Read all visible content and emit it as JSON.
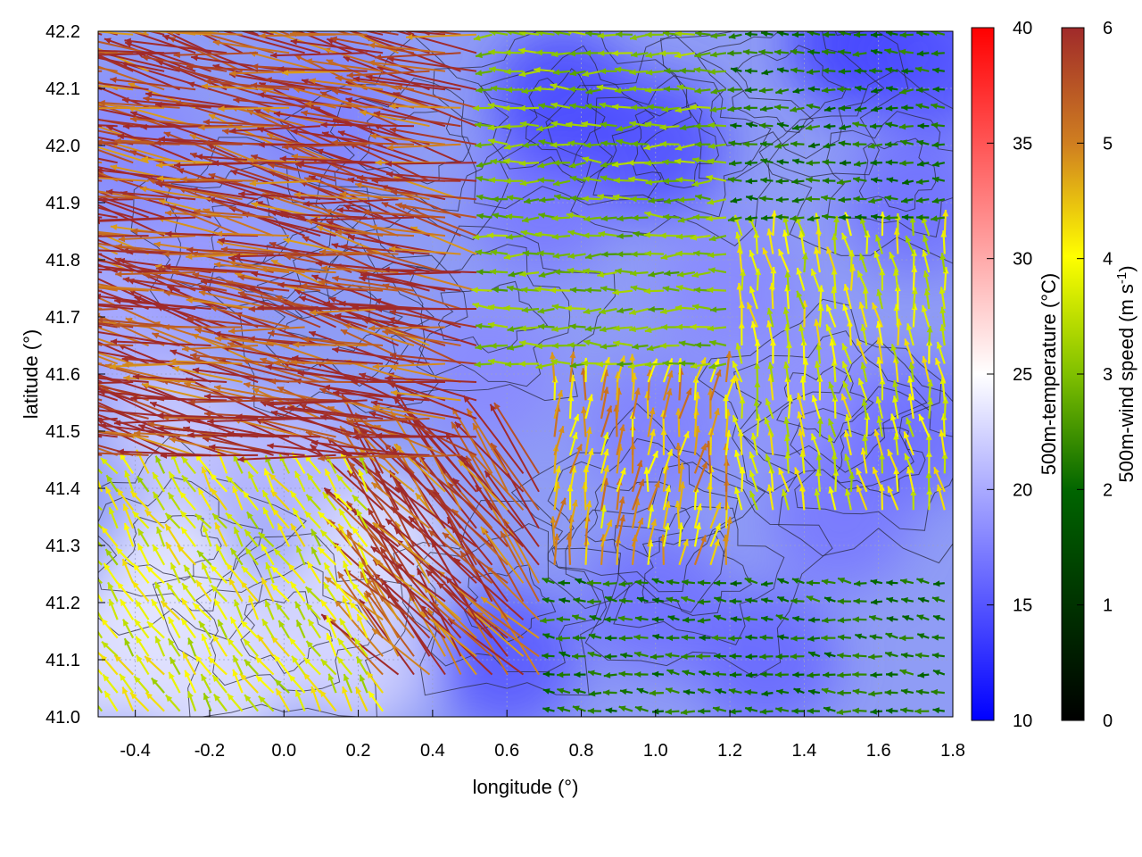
{
  "chart_data": {
    "type": "heatmap",
    "description_kind": "map of 500 m temperature (colour field) with wind-vector arrows coloured by speed and black terrain contours",
    "xlabel": "longitude (°)",
    "ylabel": "latitude (°)",
    "xlim": [
      -0.5,
      1.8
    ],
    "ylim": [
      41.0,
      42.2
    ],
    "x_ticks": [
      {
        "value": -0.4,
        "label": "-0.4"
      },
      {
        "value": -0.2,
        "label": "-0.2"
      },
      {
        "value": 0.0,
        "label": "0.0"
      },
      {
        "value": 0.2,
        "label": "0.2"
      },
      {
        "value": 0.4,
        "label": "0.4"
      },
      {
        "value": 0.6,
        "label": "0.6"
      },
      {
        "value": 0.8,
        "label": "0.8"
      },
      {
        "value": 1.0,
        "label": "1.0"
      },
      {
        "value": 1.2,
        "label": "1.2"
      },
      {
        "value": 1.4,
        "label": "1.4"
      },
      {
        "value": 1.6,
        "label": "1.6"
      },
      {
        "value": 1.8,
        "label": "1.8"
      }
    ],
    "y_ticks": [
      {
        "value": 41.0,
        "label": "41.0"
      },
      {
        "value": 41.1,
        "label": "41.1"
      },
      {
        "value": 41.2,
        "label": "41.2"
      },
      {
        "value": 41.3,
        "label": "41.3"
      },
      {
        "value": 41.4,
        "label": "41.4"
      },
      {
        "value": 41.5,
        "label": "41.5"
      },
      {
        "value": 41.6,
        "label": "41.6"
      },
      {
        "value": 41.7,
        "label": "41.7"
      },
      {
        "value": 41.8,
        "label": "41.8"
      },
      {
        "value": 41.9,
        "label": "41.9"
      },
      {
        "value": 42.0,
        "label": "42.0"
      },
      {
        "value": 42.1,
        "label": "42.1"
      },
      {
        "value": 42.2,
        "label": "42.2"
      }
    ],
    "grid": true,
    "temperature_colorbar": {
      "label": "500m-temperature (°C)",
      "range": [
        10,
        40
      ],
      "ticks": [
        {
          "value": 10,
          "label": "10"
        },
        {
          "value": 15,
          "label": "15"
        },
        {
          "value": 20,
          "label": "20"
        },
        {
          "value": 25,
          "label": "25"
        },
        {
          "value": 30,
          "label": "30"
        },
        {
          "value": 35,
          "label": "35"
        },
        {
          "value": 40,
          "label": "40"
        }
      ],
      "colors": [
        "#0000ff",
        "#ffffff",
        "#ff0000"
      ]
    },
    "wind_colorbar": {
      "label_prefix": "500m-wind speed (m s",
      "label_superscript": "-1",
      "label_suffix": ")",
      "range": [
        0,
        6
      ],
      "ticks": [
        {
          "value": 0,
          "label": "0"
        },
        {
          "value": 1,
          "label": "1"
        },
        {
          "value": 2,
          "label": "2"
        },
        {
          "value": 3,
          "label": "3"
        },
        {
          "value": 4,
          "label": "4"
        },
        {
          "value": 5,
          "label": "5"
        },
        {
          "value": 6,
          "label": "6"
        }
      ],
      "colors": [
        "#000000",
        "#006400",
        "#80c000",
        "#ffff00",
        "#d08020",
        "#a02a2a"
      ]
    },
    "temperature_field": [
      {
        "lon": -0.5,
        "lat": 41.1,
        "temp": 23.5
      },
      {
        "lon": -0.3,
        "lat": 41.25,
        "temp": 24.0
      },
      {
        "lon": -0.2,
        "lat": 41.05,
        "temp": 23.5
      },
      {
        "lon": 0.05,
        "lat": 41.15,
        "temp": 23.0
      },
      {
        "lon": 0.25,
        "lat": 41.3,
        "temp": 23.5
      },
      {
        "lon": 0.2,
        "lat": 41.1,
        "temp": 22.5
      },
      {
        "lon": -0.3,
        "lat": 41.5,
        "temp": 22.0
      },
      {
        "lon": -0.45,
        "lat": 41.7,
        "temp": 20.0
      },
      {
        "lon": -0.2,
        "lat": 41.8,
        "temp": 19.0
      },
      {
        "lon": 0.0,
        "lat": 41.45,
        "temp": 21.0
      },
      {
        "lon": -0.4,
        "lat": 42.0,
        "temp": 18.0
      },
      {
        "lon": 0.1,
        "lat": 42.05,
        "temp": 17.5
      },
      {
        "lon": 0.6,
        "lat": 41.1,
        "temp": 15.0
      },
      {
        "lon": 0.55,
        "lat": 41.6,
        "temp": 18.0
      },
      {
        "lon": 0.7,
        "lat": 41.9,
        "temp": 17.0
      },
      {
        "lon": 0.75,
        "lat": 42.08,
        "temp": 14.0
      },
      {
        "lon": 1.0,
        "lat": 42.0,
        "temp": 14.5
      },
      {
        "lon": 1.55,
        "lat": 42.18,
        "temp": 13.5
      },
      {
        "lon": 1.75,
        "lat": 42.15,
        "temp": 14.5
      },
      {
        "lon": 1.2,
        "lat": 41.75,
        "temp": 18.0
      },
      {
        "lon": 1.0,
        "lat": 41.5,
        "temp": 17.5
      },
      {
        "lon": 1.45,
        "lat": 41.55,
        "temp": 18.5
      },
      {
        "lon": 1.5,
        "lat": 41.35,
        "temp": 17.0
      },
      {
        "lon": 1.7,
        "lat": 41.5,
        "temp": 16.5
      },
      {
        "lon": 1.3,
        "lat": 41.1,
        "temp": 16.0
      },
      {
        "lon": 1.0,
        "lat": 41.2,
        "temp": 16.5
      },
      {
        "lon": 1.7,
        "lat": 41.9,
        "temp": 16.5
      }
    ],
    "wind_regimes": [
      {
        "lon": [
          -0.5,
          0.55
        ],
        "lat": [
          41.45,
          42.2
        ],
        "u": -2.8,
        "v": 0.55,
        "speed": 6.0
      },
      {
        "lon": [
          0.25,
          0.7
        ],
        "lat": [
          41.05,
          41.45
        ],
        "u": -1.2,
        "v": 1.4,
        "speed": 6.0
      },
      {
        "lon": [
          -0.5,
          0.3
        ],
        "lat": [
          41.0,
          41.45
        ],
        "u": -0.4,
        "v": 0.6,
        "speed": 3.5
      },
      {
        "lon": [
          0.55,
          1.2
        ],
        "lat": [
          41.6,
          42.2
        ],
        "u": -1.0,
        "v": 0.0,
        "speed": 2.5
      },
      {
        "lon": [
          1.2,
          1.8
        ],
        "lat": [
          41.85,
          42.2
        ],
        "u": -0.4,
        "v": 0.0,
        "speed": 1.5
      },
      {
        "lon": [
          1.2,
          1.8
        ],
        "lat": [
          41.35,
          41.85
        ],
        "u": -0.1,
        "v": 0.6,
        "speed": 3.5
      },
      {
        "lon": [
          0.7,
          1.2
        ],
        "lat": [
          41.25,
          41.6
        ],
        "u": 0.1,
        "v": 0.6,
        "speed": 4.5
      },
      {
        "lon": [
          0.7,
          1.8
        ],
        "lat": [
          41.0,
          41.25
        ],
        "u": -0.8,
        "v": 0.1,
        "speed": 1.5
      }
    ]
  }
}
